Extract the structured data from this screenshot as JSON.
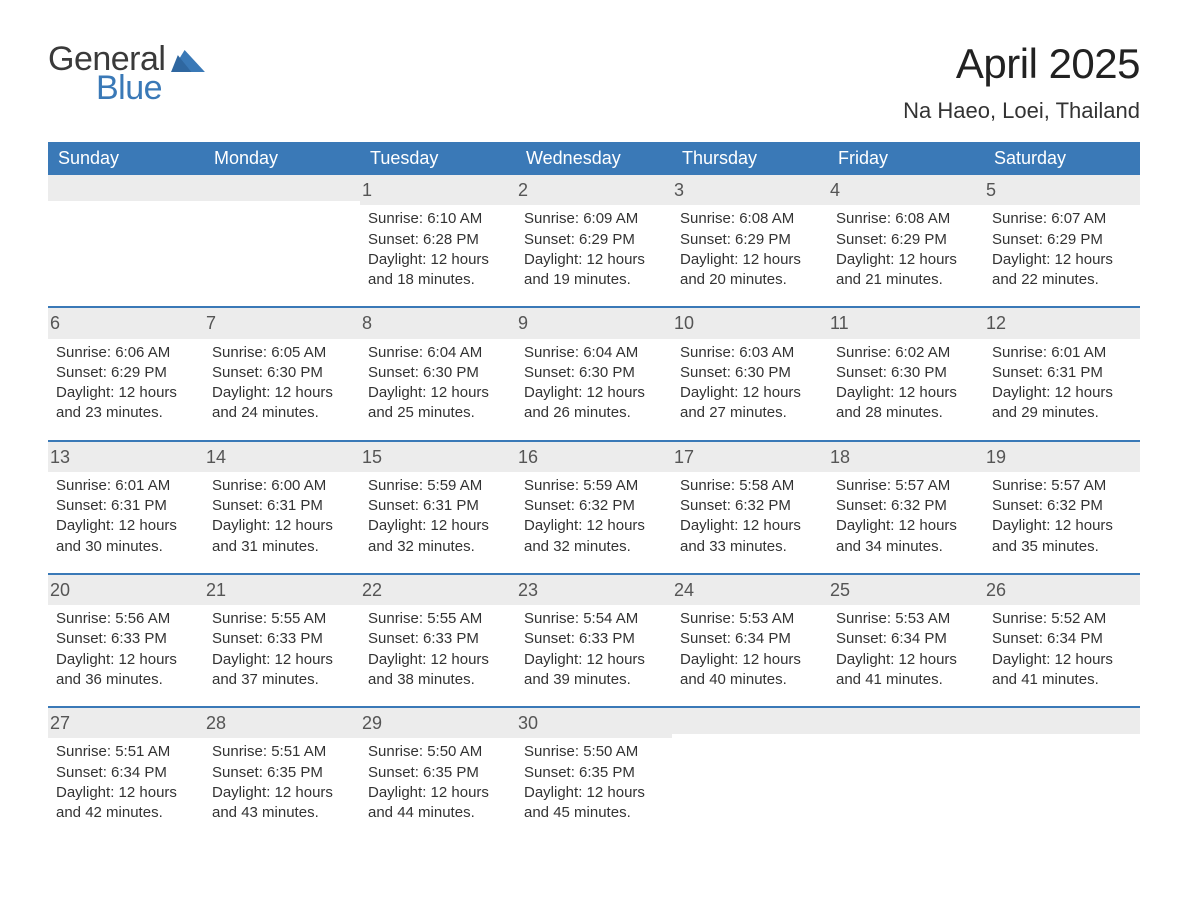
{
  "logo": {
    "text1": "General",
    "text2": "Blue",
    "flag_color": "#3a79b7"
  },
  "title": "April 2025",
  "location": "Na Haeo, Loei, Thailand",
  "colors": {
    "header_bg": "#3a79b7",
    "header_text": "#ffffff",
    "daynum_bg": "#ececec",
    "week_border": "#3a79b7",
    "body_text": "#333333",
    "page_bg": "#ffffff"
  },
  "typography": {
    "title_fontsize": 42,
    "location_fontsize": 22,
    "header_fontsize": 18,
    "daynum_fontsize": 18,
    "cell_fontsize": 15,
    "cell_lineheight": 1.35
  },
  "day_headers": [
    "Sunday",
    "Monday",
    "Tuesday",
    "Wednesday",
    "Thursday",
    "Friday",
    "Saturday"
  ],
  "weeks": [
    [
      {
        "day": "",
        "sunrise": "",
        "sunset": "",
        "daylight": ""
      },
      {
        "day": "",
        "sunrise": "",
        "sunset": "",
        "daylight": ""
      },
      {
        "day": "1",
        "sunrise": "Sunrise: 6:10 AM",
        "sunset": "Sunset: 6:28 PM",
        "daylight": "Daylight: 12 hours and 18 minutes."
      },
      {
        "day": "2",
        "sunrise": "Sunrise: 6:09 AM",
        "sunset": "Sunset: 6:29 PM",
        "daylight": "Daylight: 12 hours and 19 minutes."
      },
      {
        "day": "3",
        "sunrise": "Sunrise: 6:08 AM",
        "sunset": "Sunset: 6:29 PM",
        "daylight": "Daylight: 12 hours and 20 minutes."
      },
      {
        "day": "4",
        "sunrise": "Sunrise: 6:08 AM",
        "sunset": "Sunset: 6:29 PM",
        "daylight": "Daylight: 12 hours and 21 minutes."
      },
      {
        "day": "5",
        "sunrise": "Sunrise: 6:07 AM",
        "sunset": "Sunset: 6:29 PM",
        "daylight": "Daylight: 12 hours and 22 minutes."
      }
    ],
    [
      {
        "day": "6",
        "sunrise": "Sunrise: 6:06 AM",
        "sunset": "Sunset: 6:29 PM",
        "daylight": "Daylight: 12 hours and 23 minutes."
      },
      {
        "day": "7",
        "sunrise": "Sunrise: 6:05 AM",
        "sunset": "Sunset: 6:30 PM",
        "daylight": "Daylight: 12 hours and 24 minutes."
      },
      {
        "day": "8",
        "sunrise": "Sunrise: 6:04 AM",
        "sunset": "Sunset: 6:30 PM",
        "daylight": "Daylight: 12 hours and 25 minutes."
      },
      {
        "day": "9",
        "sunrise": "Sunrise: 6:04 AM",
        "sunset": "Sunset: 6:30 PM",
        "daylight": "Daylight: 12 hours and 26 minutes."
      },
      {
        "day": "10",
        "sunrise": "Sunrise: 6:03 AM",
        "sunset": "Sunset: 6:30 PM",
        "daylight": "Daylight: 12 hours and 27 minutes."
      },
      {
        "day": "11",
        "sunrise": "Sunrise: 6:02 AM",
        "sunset": "Sunset: 6:30 PM",
        "daylight": "Daylight: 12 hours and 28 minutes."
      },
      {
        "day": "12",
        "sunrise": "Sunrise: 6:01 AM",
        "sunset": "Sunset: 6:31 PM",
        "daylight": "Daylight: 12 hours and 29 minutes."
      }
    ],
    [
      {
        "day": "13",
        "sunrise": "Sunrise: 6:01 AM",
        "sunset": "Sunset: 6:31 PM",
        "daylight": "Daylight: 12 hours and 30 minutes."
      },
      {
        "day": "14",
        "sunrise": "Sunrise: 6:00 AM",
        "sunset": "Sunset: 6:31 PM",
        "daylight": "Daylight: 12 hours and 31 minutes."
      },
      {
        "day": "15",
        "sunrise": "Sunrise: 5:59 AM",
        "sunset": "Sunset: 6:31 PM",
        "daylight": "Daylight: 12 hours and 32 minutes."
      },
      {
        "day": "16",
        "sunrise": "Sunrise: 5:59 AM",
        "sunset": "Sunset: 6:32 PM",
        "daylight": "Daylight: 12 hours and 32 minutes."
      },
      {
        "day": "17",
        "sunrise": "Sunrise: 5:58 AM",
        "sunset": "Sunset: 6:32 PM",
        "daylight": "Daylight: 12 hours and 33 minutes."
      },
      {
        "day": "18",
        "sunrise": "Sunrise: 5:57 AM",
        "sunset": "Sunset: 6:32 PM",
        "daylight": "Daylight: 12 hours and 34 minutes."
      },
      {
        "day": "19",
        "sunrise": "Sunrise: 5:57 AM",
        "sunset": "Sunset: 6:32 PM",
        "daylight": "Daylight: 12 hours and 35 minutes."
      }
    ],
    [
      {
        "day": "20",
        "sunrise": "Sunrise: 5:56 AM",
        "sunset": "Sunset: 6:33 PM",
        "daylight": "Daylight: 12 hours and 36 minutes."
      },
      {
        "day": "21",
        "sunrise": "Sunrise: 5:55 AM",
        "sunset": "Sunset: 6:33 PM",
        "daylight": "Daylight: 12 hours and 37 minutes."
      },
      {
        "day": "22",
        "sunrise": "Sunrise: 5:55 AM",
        "sunset": "Sunset: 6:33 PM",
        "daylight": "Daylight: 12 hours and 38 minutes."
      },
      {
        "day": "23",
        "sunrise": "Sunrise: 5:54 AM",
        "sunset": "Sunset: 6:33 PM",
        "daylight": "Daylight: 12 hours and 39 minutes."
      },
      {
        "day": "24",
        "sunrise": "Sunrise: 5:53 AM",
        "sunset": "Sunset: 6:34 PM",
        "daylight": "Daylight: 12 hours and 40 minutes."
      },
      {
        "day": "25",
        "sunrise": "Sunrise: 5:53 AM",
        "sunset": "Sunset: 6:34 PM",
        "daylight": "Daylight: 12 hours and 41 minutes."
      },
      {
        "day": "26",
        "sunrise": "Sunrise: 5:52 AM",
        "sunset": "Sunset: 6:34 PM",
        "daylight": "Daylight: 12 hours and 41 minutes."
      }
    ],
    [
      {
        "day": "27",
        "sunrise": "Sunrise: 5:51 AM",
        "sunset": "Sunset: 6:34 PM",
        "daylight": "Daylight: 12 hours and 42 minutes."
      },
      {
        "day": "28",
        "sunrise": "Sunrise: 5:51 AM",
        "sunset": "Sunset: 6:35 PM",
        "daylight": "Daylight: 12 hours and 43 minutes."
      },
      {
        "day": "29",
        "sunrise": "Sunrise: 5:50 AM",
        "sunset": "Sunset: 6:35 PM",
        "daylight": "Daylight: 12 hours and 44 minutes."
      },
      {
        "day": "30",
        "sunrise": "Sunrise: 5:50 AM",
        "sunset": "Sunset: 6:35 PM",
        "daylight": "Daylight: 12 hours and 45 minutes."
      },
      {
        "day": "",
        "sunrise": "",
        "sunset": "",
        "daylight": ""
      },
      {
        "day": "",
        "sunrise": "",
        "sunset": "",
        "daylight": ""
      },
      {
        "day": "",
        "sunrise": "",
        "sunset": "",
        "daylight": ""
      }
    ]
  ]
}
